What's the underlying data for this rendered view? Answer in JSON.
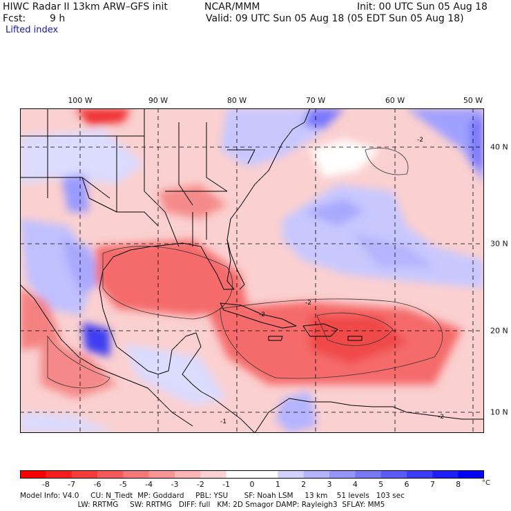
{
  "header": {
    "model_title": "HIWC Radar II 13km ARW–GFS init",
    "center": "NCAR/MMM",
    "init": "Init: 00 UTC Sun 05 Aug 18",
    "fcst_label": "Fcst:",
    "fcst_value": "9 h",
    "valid": "Valid: 09 UTC Sun 05 Aug 18 (05 EDT Sun 05 Aug 18)",
    "field": "Lifted index"
  },
  "map": {
    "lon_labels": [
      "100 W",
      "90 W",
      "80 W",
      "70 W",
      "60 W",
      "50 W"
    ],
    "lat_labels": [
      "40 N",
      "30 N",
      "20 N",
      "10 N"
    ],
    "contour_labels": [
      "-2",
      "-2",
      "-2",
      "-1",
      "-2"
    ],
    "field_colors": {
      "very_neg": "#e8000a",
      "neg": "#f56a6a",
      "slight_neg": "#fab8b8",
      "neutral": "#ffffff",
      "slight_pos": "#c8c8ff",
      "pos": "#7878ff",
      "very_pos": "#1414e6",
      "land_line": "#000000",
      "grid_line": "#000000"
    }
  },
  "colorbar": {
    "ticks": [
      "-8",
      "-7",
      "-6",
      "-5",
      "-4",
      "-3",
      "-2",
      "-1",
      "0",
      "1",
      "2",
      "3",
      "4",
      "5",
      "6",
      "7",
      "8"
    ],
    "unit": "°C",
    "colors": [
      "#f50000",
      "#f51e1e",
      "#f53c3c",
      "#f55a5a",
      "#f57878",
      "#f89696",
      "#fab4b4",
      "#fcd2d2",
      "#ffffff",
      "#ffffff",
      "#d2d2fc",
      "#b4b4fa",
      "#9696f8",
      "#7878f5",
      "#5a5af5",
      "#3c3cf5",
      "#1e1ef5",
      "#0000f5"
    ]
  },
  "footer": {
    "line1": "Model Info: V4.0     CU: N_Tiedt  MP: Goddard     PBL: YSU       SF: Noah LSM     13 km    51 levels   103 sec",
    "line2": "                         LW: RRTMG     SW: RRTMG   DIFF: full   KM: 2D Smagor DAMP: Rayleigh3  SFLAY: MM5"
  }
}
